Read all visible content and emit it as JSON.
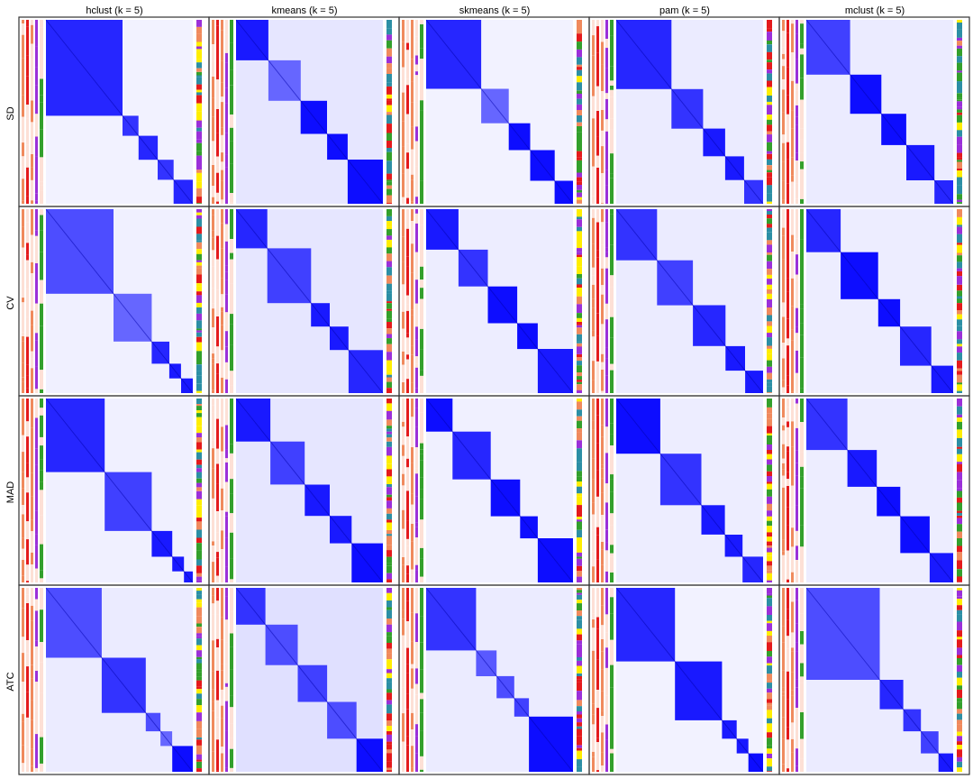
{
  "columns": [
    {
      "label": "hclust (k = 5)"
    },
    {
      "label": "kmeans (k = 5)"
    },
    {
      "label": "skmeans (k = 5)"
    },
    {
      "label": "pam (k = 5)"
    },
    {
      "label": "mclust (k = 5)"
    }
  ],
  "rows": [
    {
      "label": "SD"
    },
    {
      "label": "CV"
    },
    {
      "label": "MAD"
    },
    {
      "label": "ATC"
    }
  ],
  "colors": {
    "strong": "#0000ff",
    "low": "#ffffff",
    "panel_border": "#333333",
    "anno_red": "#e41a1c",
    "anno_orange": "#f08a5d",
    "anno_purple": "#9b30d9",
    "anno_green": "#33a02c",
    "anno_yellow": "#ffee00",
    "anno_teal": "#2c8fa5"
  },
  "chart_data": {
    "type": "heatmap",
    "description_fields": "consensus matrices; block sizes as fractions of samples, value = block consensus intensity 0-1",
    "panels": [
      [
        {
          "blocks": [
            [
              0.48,
              0.85
            ],
            [
              0.1,
              0.8
            ],
            [
              0.12,
              0.85
            ],
            [
              0.1,
              0.8
            ],
            [
              0.12,
              0.85
            ]
          ],
          "bg": 0.05
        },
        {
          "blocks": [
            [
              0.22,
              0.9
            ],
            [
              0.22,
              0.6
            ],
            [
              0.18,
              0.95
            ],
            [
              0.14,
              0.95
            ],
            [
              0.24,
              0.95
            ]
          ],
          "bg": 0.1
        },
        {
          "blocks": [
            [
              0.36,
              0.85
            ],
            [
              0.18,
              0.6
            ],
            [
              0.14,
              0.95
            ],
            [
              0.16,
              0.95
            ],
            [
              0.12,
              0.95
            ]
          ],
          "bg": 0.05
        },
        {
          "blocks": [
            [
              0.35,
              0.85
            ],
            [
              0.2,
              0.8
            ],
            [
              0.14,
              0.9
            ],
            [
              0.12,
              0.9
            ],
            [
              0.12,
              0.8
            ]
          ],
          "bg": 0.08
        },
        {
          "blocks": [
            [
              0.28,
              0.75
            ],
            [
              0.2,
              0.95
            ],
            [
              0.16,
              0.95
            ],
            [
              0.18,
              0.9
            ],
            [
              0.12,
              0.85
            ]
          ],
          "bg": 0.08
        }
      ],
      [
        {
          "blocks": [
            [
              0.46,
              0.7
            ],
            [
              0.26,
              0.6
            ],
            [
              0.12,
              0.85
            ],
            [
              0.08,
              0.9
            ],
            [
              0.08,
              0.9
            ]
          ],
          "bg": 0.06
        },
        {
          "blocks": [
            [
              0.2,
              0.85
            ],
            [
              0.28,
              0.75
            ],
            [
              0.12,
              0.9
            ],
            [
              0.12,
              0.9
            ],
            [
              0.22,
              0.85
            ]
          ],
          "bg": 0.1
        },
        {
          "blocks": [
            [
              0.22,
              0.9
            ],
            [
              0.2,
              0.8
            ],
            [
              0.2,
              0.95
            ],
            [
              0.14,
              0.95
            ],
            [
              0.24,
              0.9
            ]
          ],
          "bg": 0.07
        },
        {
          "blocks": [
            [
              0.25,
              0.8
            ],
            [
              0.22,
              0.75
            ],
            [
              0.2,
              0.85
            ],
            [
              0.12,
              0.9
            ],
            [
              0.11,
              0.9
            ]
          ],
          "bg": 0.08
        },
        {
          "blocks": [
            [
              0.22,
              0.85
            ],
            [
              0.24,
              0.95
            ],
            [
              0.14,
              0.95
            ],
            [
              0.2,
              0.85
            ],
            [
              0.14,
              0.9
            ]
          ],
          "bg": 0.07
        }
      ],
      [
        {
          "blocks": [
            [
              0.4,
              0.85
            ],
            [
              0.32,
              0.75
            ],
            [
              0.14,
              0.9
            ],
            [
              0.08,
              0.9
            ],
            [
              0.06,
              0.9
            ]
          ],
          "bg": 0.06
        },
        {
          "blocks": [
            [
              0.22,
              0.9
            ],
            [
              0.22,
              0.75
            ],
            [
              0.16,
              0.9
            ],
            [
              0.14,
              0.9
            ],
            [
              0.2,
              0.95
            ]
          ],
          "bg": 0.1
        },
        {
          "blocks": [
            [
              0.18,
              0.95
            ],
            [
              0.26,
              0.85
            ],
            [
              0.2,
              0.95
            ],
            [
              0.12,
              0.95
            ],
            [
              0.24,
              0.95
            ]
          ],
          "bg": 0.06
        },
        {
          "blocks": [
            [
              0.3,
              0.95
            ],
            [
              0.28,
              0.8
            ],
            [
              0.16,
              0.9
            ],
            [
              0.12,
              0.9
            ],
            [
              0.14,
              0.85
            ]
          ],
          "bg": 0.07
        },
        {
          "blocks": [
            [
              0.28,
              0.8
            ],
            [
              0.2,
              0.9
            ],
            [
              0.16,
              0.95
            ],
            [
              0.2,
              0.95
            ],
            [
              0.16,
              0.9
            ]
          ],
          "bg": 0.07
        }
      ],
      [
        {
          "blocks": [
            [
              0.38,
              0.7
            ],
            [
              0.3,
              0.8
            ],
            [
              0.1,
              0.7
            ],
            [
              0.08,
              0.6
            ],
            [
              0.14,
              0.95
            ]
          ],
          "bg": 0.08
        },
        {
          "blocks": [
            [
              0.2,
              0.8
            ],
            [
              0.22,
              0.7
            ],
            [
              0.2,
              0.75
            ],
            [
              0.2,
              0.7
            ],
            [
              0.18,
              0.95
            ]
          ],
          "bg": 0.12
        },
        {
          "blocks": [
            [
              0.34,
              0.8
            ],
            [
              0.14,
              0.65
            ],
            [
              0.12,
              0.7
            ],
            [
              0.1,
              0.75
            ],
            [
              0.3,
              0.95
            ]
          ],
          "bg": 0.08
        },
        {
          "blocks": [
            [
              0.4,
              0.85
            ],
            [
              0.32,
              0.9
            ],
            [
              0.1,
              0.9
            ],
            [
              0.08,
              0.9
            ],
            [
              0.1,
              0.95
            ]
          ],
          "bg": 0.05
        },
        {
          "blocks": [
            [
              0.5,
              0.7
            ],
            [
              0.16,
              0.85
            ],
            [
              0.12,
              0.8
            ],
            [
              0.12,
              0.75
            ],
            [
              0.1,
              0.9
            ]
          ],
          "bg": 0.08
        }
      ]
    ]
  }
}
